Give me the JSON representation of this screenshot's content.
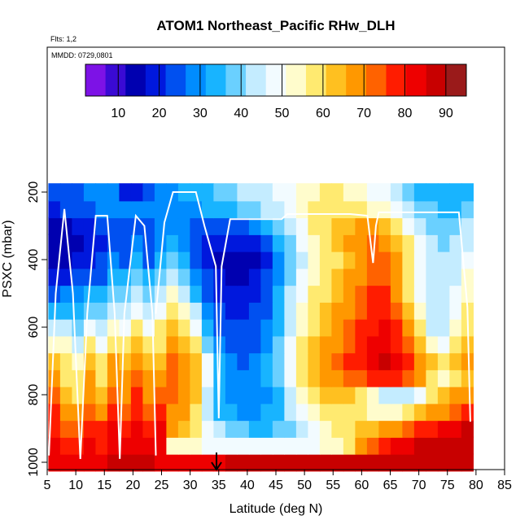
{
  "chart_data": {
    "type": "heatmap",
    "title": "ATOM1 Northeast_Pacific RHw_DLH",
    "flights_label": "Flts: 1,2",
    "dates_label": "MMDD: 0729,0801",
    "xlabel": "Latitude (deg N)",
    "ylabel": "PSXC (mbar)",
    "xlim": [
      5,
      85
    ],
    "ylim": [
      1000,
      0
    ],
    "x_ticks": [
      "5",
      "10",
      "15",
      "20",
      "25",
      "30",
      "35",
      "40",
      "45",
      "50",
      "55",
      "60",
      "65",
      "70",
      "75",
      "80",
      "85"
    ],
    "y_ticks": [
      "200",
      "400",
      "600",
      "800",
      "1000"
    ],
    "colorbar": {
      "range": [
        2,
        95
      ],
      "ticks": [
        "10",
        "20",
        "30",
        "40",
        "50",
        "60",
        "70",
        "80",
        "90"
      ],
      "colors": [
        "#7d12e6",
        "#3a0ad4",
        "#0000b0",
        "#0018dd",
        "#0050f0",
        "#008cff",
        "#18b4ff",
        "#6ad0ff",
        "#c4ecff",
        "#f2fbff",
        "#fffccc",
        "#ffea70",
        "#ffc020",
        "#ff9800",
        "#ff6200",
        "#ff1c00",
        "#ee0000",
        "#c80000",
        "#9a1a1a"
      ]
    },
    "profiles": [
      {
        "p": 1000,
        "values": [
          85,
          82,
          82,
          84,
          85,
          86,
          86,
          87,
          86,
          85,
          85,
          84,
          84,
          85,
          85,
          86,
          87,
          88,
          88,
          88,
          88,
          88,
          88,
          88,
          88,
          89,
          89,
          90,
          90,
          90,
          90,
          90,
          90,
          90,
          90,
          90
        ]
      },
      {
        "p": 950,
        "values": [
          83,
          80,
          78,
          82,
          80,
          84,
          83,
          85,
          84,
          85,
          55,
          53,
          52,
          50,
          50,
          49,
          49,
          49,
          48,
          48,
          48,
          49,
          50,
          52,
          55,
          60,
          66,
          72,
          78,
          82,
          84,
          86,
          88,
          88,
          88,
          88
        ]
      },
      {
        "p": 900,
        "values": [
          80,
          75,
          72,
          78,
          76,
          82,
          80,
          84,
          80,
          82,
          66,
          62,
          58,
          48,
          44,
          40,
          38,
          36,
          36,
          38,
          40,
          44,
          48,
          52,
          56,
          60,
          62,
          64,
          66,
          68,
          72,
          76,
          80,
          82,
          84,
          86
        ]
      },
      {
        "p": 850,
        "values": [
          76,
          70,
          66,
          74,
          70,
          78,
          74,
          80,
          74,
          76,
          70,
          66,
          60,
          44,
          36,
          32,
          30,
          30,
          32,
          36,
          42,
          48,
          54,
          58,
          60,
          58,
          56,
          54,
          54,
          55,
          58,
          62,
          66,
          70,
          74,
          78
        ]
      },
      {
        "p": 800,
        "values": [
          72,
          64,
          60,
          70,
          64,
          74,
          70,
          76,
          70,
          72,
          72,
          68,
          62,
          46,
          34,
          30,
          28,
          28,
          30,
          36,
          44,
          52,
          58,
          62,
          64,
          62,
          58,
          52,
          46,
          44,
          46,
          50,
          56,
          62,
          66,
          70
        ]
      },
      {
        "p": 750,
        "values": [
          68,
          60,
          56,
          66,
          60,
          70,
          66,
          72,
          66,
          68,
          74,
          70,
          64,
          50,
          36,
          30,
          28,
          28,
          32,
          40,
          50,
          58,
          64,
          68,
          70,
          72,
          74,
          76,
          78,
          78,
          74,
          66,
          58,
          52,
          58,
          64
        ]
      },
      {
        "p": 700,
        "values": [
          62,
          58,
          52,
          62,
          56,
          66,
          62,
          68,
          62,
          64,
          74,
          70,
          62,
          48,
          34,
          28,
          26,
          28,
          32,
          40,
          50,
          58,
          64,
          68,
          72,
          76,
          80,
          84,
          86,
          84,
          78,
          70,
          62,
          56,
          62,
          68
        ]
      },
      {
        "p": 650,
        "values": [
          55,
          52,
          46,
          56,
          50,
          60,
          56,
          62,
          56,
          60,
          70,
          64,
          56,
          40,
          30,
          26,
          24,
          26,
          30,
          38,
          48,
          56,
          62,
          66,
          70,
          74,
          78,
          82,
          84,
          80,
          72,
          62,
          52,
          48,
          56,
          62
        ]
      },
      {
        "p": 600,
        "values": [
          46,
          44,
          40,
          48,
          44,
          54,
          50,
          56,
          50,
          56,
          64,
          58,
          48,
          34,
          26,
          22,
          22,
          24,
          28,
          36,
          46,
          54,
          60,
          64,
          68,
          72,
          76,
          80,
          82,
          76,
          66,
          56,
          46,
          44,
          52,
          58
        ]
      },
      {
        "p": 550,
        "values": [
          36,
          36,
          34,
          40,
          38,
          46,
          44,
          50,
          44,
          50,
          58,
          52,
          42,
          30,
          22,
          20,
          20,
          22,
          26,
          34,
          44,
          52,
          58,
          62,
          66,
          70,
          74,
          78,
          78,
          72,
          62,
          52,
          44,
          42,
          50,
          56
        ]
      },
      {
        "p": 500,
        "values": [
          26,
          28,
          28,
          32,
          32,
          40,
          38,
          44,
          38,
          44,
          52,
          46,
          36,
          26,
          20,
          18,
          18,
          20,
          24,
          32,
          42,
          50,
          56,
          60,
          64,
          68,
          72,
          76,
          76,
          70,
          60,
          50,
          44,
          42,
          48,
          54
        ]
      },
      {
        "p": 450,
        "values": [
          18,
          20,
          22,
          26,
          26,
          34,
          32,
          38,
          32,
          38,
          46,
          40,
          30,
          22,
          18,
          16,
          16,
          18,
          22,
          30,
          40,
          48,
          54,
          58,
          62,
          66,
          70,
          74,
          74,
          68,
          58,
          50,
          44,
          42,
          46,
          52
        ]
      },
      {
        "p": 400,
        "values": [
          14,
          16,
          18,
          20,
          22,
          28,
          26,
          32,
          26,
          32,
          40,
          34,
          26,
          20,
          16,
          14,
          14,
          16,
          20,
          28,
          38,
          46,
          52,
          56,
          60,
          64,
          68,
          72,
          72,
          66,
          58,
          50,
          44,
          42,
          44,
          50
        ]
      },
      {
        "p": 350,
        "values": [
          12,
          14,
          16,
          18,
          20,
          24,
          22,
          28,
          24,
          28,
          34,
          30,
          24,
          20,
          18,
          18,
          18,
          20,
          24,
          32,
          40,
          48,
          54,
          58,
          62,
          66,
          70,
          72,
          70,
          64,
          56,
          48,
          42,
          40,
          42,
          46
        ]
      },
      {
        "p": 300,
        "values": [
          14,
          16,
          18,
          20,
          22,
          24,
          24,
          26,
          26,
          28,
          30,
          28,
          26,
          24,
          24,
          24,
          26,
          28,
          32,
          38,
          44,
          50,
          56,
          60,
          62,
          64,
          66,
          66,
          64,
          58,
          50,
          44,
          40,
          38,
          40,
          44
        ]
      },
      {
        "p": 250,
        "values": [
          20,
          22,
          24,
          26,
          28,
          28,
          28,
          28,
          30,
          30,
          30,
          30,
          30,
          32,
          34,
          36,
          38,
          40,
          42,
          46,
          50,
          54,
          58,
          60,
          60,
          58,
          56,
          54,
          52,
          48,
          44,
          40,
          38,
          36,
          36,
          38
        ]
      },
      {
        "p": 200,
        "values": [
          22,
          24,
          26,
          28,
          30,
          30,
          20,
          18,
          22,
          28,
          30,
          32,
          34,
          36,
          38,
          40,
          42,
          44,
          46,
          48,
          50,
          52,
          54,
          56,
          56,
          54,
          52,
          50,
          48,
          44,
          40,
          36,
          34,
          32,
          32,
          34
        ]
      }
    ]
  }
}
